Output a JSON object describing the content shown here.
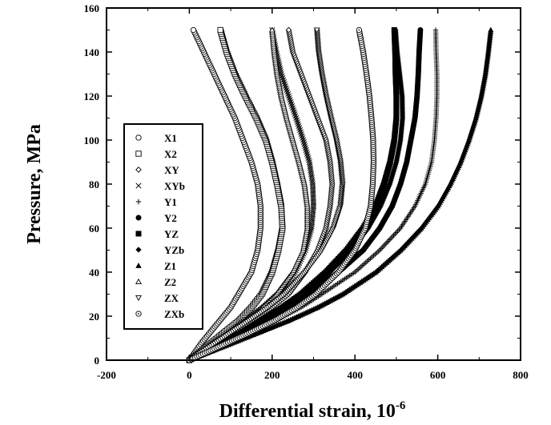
{
  "chart_data": {
    "type": "scatter",
    "title": "",
    "xlabel": "Differential strain, 10",
    "xlabel_exponent": "-6",
    "ylabel": "Pressure, MPa",
    "xlim": [
      -200,
      800
    ],
    "ylim": [
      0,
      160
    ],
    "xticks": [
      -200,
      0,
      200,
      400,
      600,
      800
    ],
    "yticks": [
      0,
      20,
      40,
      60,
      80,
      100,
      120,
      140,
      160
    ],
    "grid": false,
    "legend_position": "left",
    "series": [
      {
        "name": "X1",
        "marker": "circle-open",
        "points": [
          [
            0,
            0
          ],
          [
            30,
            8
          ],
          [
            65,
            16
          ],
          [
            100,
            24
          ],
          [
            125,
            32
          ],
          [
            150,
            40
          ],
          [
            165,
            50
          ],
          [
            172,
            60
          ],
          [
            172,
            70
          ],
          [
            165,
            80
          ],
          [
            150,
            90
          ],
          [
            130,
            100
          ],
          [
            110,
            110
          ],
          [
            85,
            120
          ],
          [
            60,
            130
          ],
          [
            35,
            140
          ],
          [
            10,
            150
          ]
        ]
      },
      {
        "name": "X2",
        "marker": "square-open",
        "points": [
          [
            0,
            0
          ],
          [
            40,
            6
          ],
          [
            80,
            12
          ],
          [
            120,
            18
          ],
          [
            150,
            24
          ],
          [
            175,
            30
          ],
          [
            200,
            40
          ],
          [
            215,
            50
          ],
          [
            225,
            60
          ],
          [
            222,
            70
          ],
          [
            212,
            80
          ],
          [
            200,
            90
          ],
          [
            185,
            100
          ],
          [
            162,
            110
          ],
          [
            135,
            120
          ],
          [
            110,
            130
          ],
          [
            90,
            140
          ],
          [
            75,
            150
          ]
        ]
      },
      {
        "name": "XY",
        "marker": "diamond-open",
        "points": [
          [
            0,
            0
          ],
          [
            50,
            6
          ],
          [
            100,
            12
          ],
          [
            150,
            18
          ],
          [
            200,
            24
          ],
          [
            240,
            30
          ],
          [
            280,
            40
          ],
          [
            310,
            50
          ],
          [
            330,
            60
          ],
          [
            340,
            70
          ],
          [
            345,
            80
          ],
          [
            340,
            90
          ],
          [
            330,
            100
          ],
          [
            310,
            110
          ],
          [
            290,
            120
          ],
          [
            270,
            130
          ],
          [
            250,
            140
          ],
          [
            240,
            150
          ]
        ]
      },
      {
        "name": "XYb",
        "marker": "x",
        "points": [
          [
            0,
            0
          ],
          [
            45,
            6
          ],
          [
            90,
            12
          ],
          [
            135,
            18
          ],
          [
            180,
            24
          ],
          [
            220,
            30
          ],
          [
            255,
            40
          ],
          [
            280,
            50
          ],
          [
            295,
            60
          ],
          [
            300,
            70
          ],
          [
            298,
            80
          ],
          [
            290,
            90
          ],
          [
            275,
            100
          ],
          [
            258,
            110
          ],
          [
            240,
            120
          ],
          [
            222,
            130
          ],
          [
            210,
            140
          ],
          [
            200,
            150
          ]
        ]
      },
      {
        "name": "Y1",
        "marker": "plus",
        "points": [
          [
            0,
            0
          ],
          [
            70,
            6
          ],
          [
            140,
            12
          ],
          [
            210,
            18
          ],
          [
            270,
            24
          ],
          [
            320,
            30
          ],
          [
            400,
            40
          ],
          [
            460,
            50
          ],
          [
            510,
            60
          ],
          [
            545,
            70
          ],
          [
            570,
            80
          ],
          [
            585,
            90
          ],
          [
            592,
            100
          ],
          [
            596,
            110
          ],
          [
            598,
            120
          ],
          [
            598,
            130
          ],
          [
            596,
            140
          ],
          [
            595,
            150
          ]
        ]
      },
      {
        "name": "Y2",
        "marker": "circle-filled",
        "points": [
          [
            0,
            0
          ],
          [
            60,
            6
          ],
          [
            120,
            12
          ],
          [
            180,
            18
          ],
          [
            240,
            24
          ],
          [
            290,
            30
          ],
          [
            360,
            40
          ],
          [
            420,
            50
          ],
          [
            460,
            60
          ],
          [
            490,
            70
          ],
          [
            510,
            80
          ],
          [
            525,
            90
          ],
          [
            535,
            100
          ],
          [
            545,
            110
          ],
          [
            550,
            120
          ],
          [
            553,
            130
          ],
          [
            555,
            140
          ],
          [
            558,
            150
          ]
        ]
      },
      {
        "name": "YZ",
        "marker": "square-filled",
        "points": [
          [
            0,
            0
          ],
          [
            60,
            6
          ],
          [
            120,
            12
          ],
          [
            175,
            18
          ],
          [
            225,
            24
          ],
          [
            270,
            30
          ],
          [
            330,
            40
          ],
          [
            380,
            50
          ],
          [
            420,
            60
          ],
          [
            450,
            70
          ],
          [
            470,
            80
          ],
          [
            485,
            90
          ],
          [
            495,
            100
          ],
          [
            500,
            110
          ],
          [
            500,
            120
          ],
          [
            498,
            130
          ],
          [
            497,
            140
          ],
          [
            495,
            150
          ]
        ]
      },
      {
        "name": "YZb",
        "marker": "diamond-filled",
        "points": [
          [
            0,
            0
          ],
          [
            62,
            6
          ],
          [
            124,
            12
          ],
          [
            180,
            18
          ],
          [
            232,
            24
          ],
          [
            278,
            30
          ],
          [
            340,
            40
          ],
          [
            392,
            50
          ],
          [
            432,
            60
          ],
          [
            462,
            70
          ],
          [
            484,
            80
          ],
          [
            500,
            90
          ],
          [
            510,
            100
          ],
          [
            515,
            110
          ],
          [
            514,
            120
          ],
          [
            508,
            130
          ],
          [
            502,
            140
          ],
          [
            498,
            150
          ]
        ]
      },
      {
        "name": "Z1",
        "marker": "triangle-filled",
        "points": [
          [
            0,
            0
          ],
          [
            80,
            6
          ],
          [
            160,
            12
          ],
          [
            240,
            18
          ],
          [
            310,
            24
          ],
          [
            370,
            30
          ],
          [
            450,
            40
          ],
          [
            510,
            50
          ],
          [
            560,
            60
          ],
          [
            600,
            70
          ],
          [
            630,
            80
          ],
          [
            655,
            90
          ],
          [
            675,
            100
          ],
          [
            692,
            110
          ],
          [
            705,
            120
          ],
          [
            715,
            130
          ],
          [
            722,
            140
          ],
          [
            728,
            150
          ]
        ]
      },
      {
        "name": "Z2",
        "marker": "triangle-open",
        "points": [
          [
            0,
            0
          ],
          [
            45,
            6
          ],
          [
            90,
            12
          ],
          [
            135,
            18
          ],
          [
            175,
            24
          ],
          [
            210,
            30
          ],
          [
            250,
            40
          ],
          [
            275,
            50
          ],
          [
            285,
            60
          ],
          [
            285,
            70
          ],
          [
            278,
            80
          ],
          [
            265,
            90
          ],
          [
            250,
            100
          ],
          [
            235,
            110
          ],
          [
            222,
            120
          ],
          [
            212,
            130
          ],
          [
            205,
            140
          ],
          [
            200,
            150
          ]
        ]
      },
      {
        "name": "ZX",
        "marker": "triangle-down-open",
        "points": [
          [
            0,
            0
          ],
          [
            48,
            6
          ],
          [
            96,
            12
          ],
          [
            144,
            18
          ],
          [
            190,
            24
          ],
          [
            230,
            30
          ],
          [
            280,
            40
          ],
          [
            320,
            50
          ],
          [
            348,
            60
          ],
          [
            365,
            70
          ],
          [
            370,
            80
          ],
          [
            365,
            90
          ],
          [
            355,
            100
          ],
          [
            342,
            110
          ],
          [
            330,
            120
          ],
          [
            320,
            130
          ],
          [
            312,
            140
          ],
          [
            308,
            150
          ]
        ]
      },
      {
        "name": "ZXb",
        "marker": "circle-dot",
        "points": [
          [
            0,
            0
          ],
          [
            70,
            6
          ],
          [
            140,
            12
          ],
          [
            205,
            18
          ],
          [
            260,
            24
          ],
          [
            305,
            30
          ],
          [
            360,
            40
          ],
          [
            400,
            50
          ],
          [
            425,
            60
          ],
          [
            438,
            70
          ],
          [
            443,
            80
          ],
          [
            445,
            90
          ],
          [
            444,
            100
          ],
          [
            440,
            110
          ],
          [
            435,
            120
          ],
          [
            428,
            130
          ],
          [
            420,
            140
          ],
          [
            410,
            150
          ]
        ]
      }
    ]
  }
}
